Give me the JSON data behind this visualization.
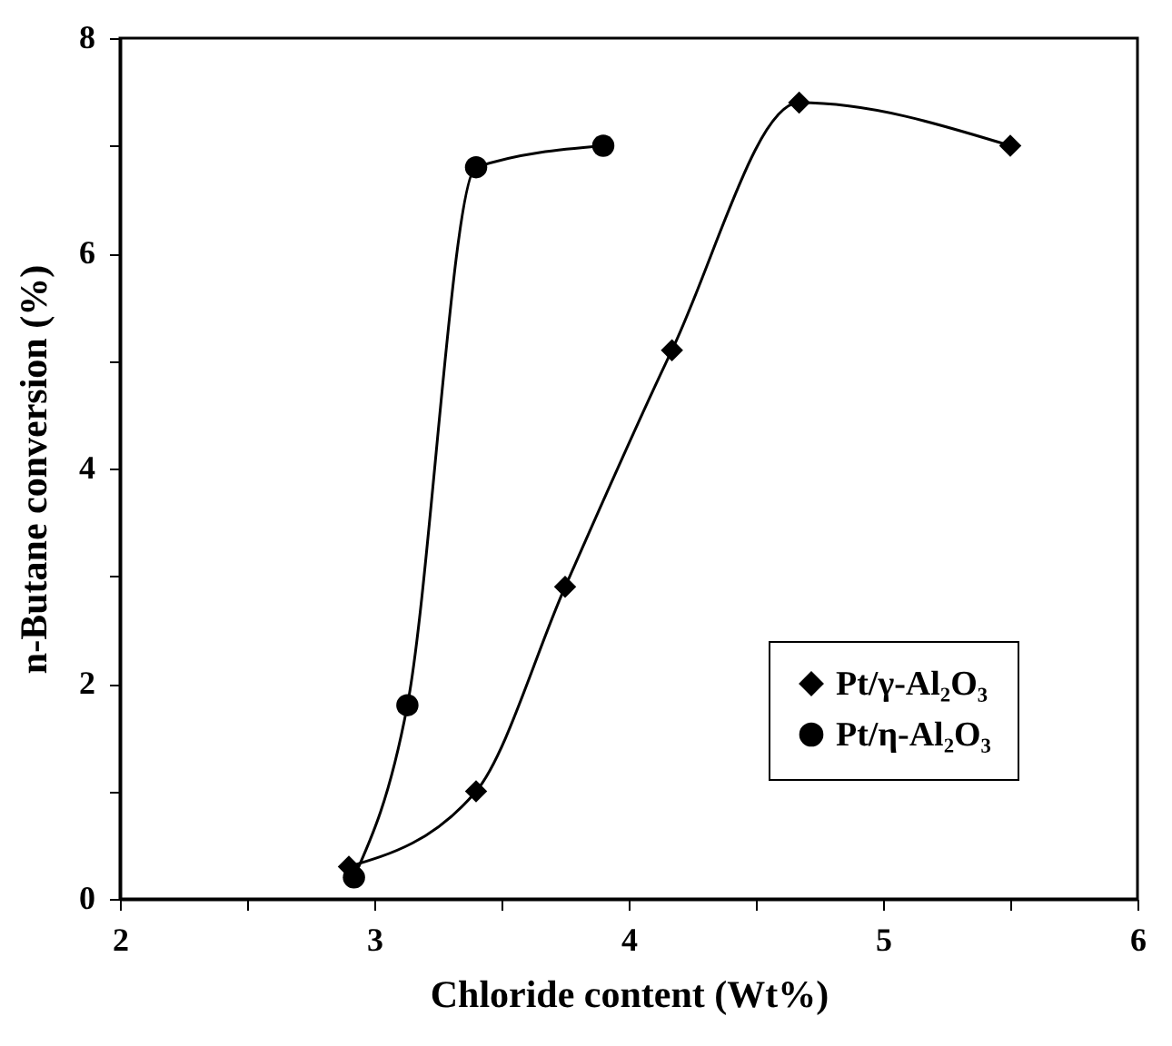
{
  "chart_data": {
    "type": "line",
    "xlabel": "Chloride content (Wt%)",
    "ylabel": "n-Butane conversion (%)",
    "xlim": [
      2,
      6
    ],
    "ylim": [
      0,
      8
    ],
    "xticks": [
      2,
      {
        "value": 2.5,
        "label": null
      },
      3,
      {
        "value": 3.5,
        "label": null
      },
      4,
      {
        "value": 4.5,
        "label": null
      },
      5,
      {
        "value": 5.5,
        "label": null
      },
      6
    ],
    "yticks": [
      0,
      {
        "value": 1,
        "label": null
      },
      2,
      {
        "value": 3,
        "label": null
      },
      4,
      {
        "value": 5,
        "label": null
      },
      6,
      {
        "value": 7,
        "label": null
      },
      8
    ],
    "legend": "bottom right",
    "grid": false,
    "line_style": "solid",
    "series": [
      {
        "name": "Pt/γ-Al₂O₃",
        "color": "#000000",
        "marker": "diamond",
        "x": [
          2.9,
          3.4,
          3.75,
          4.17,
          4.67,
          5.5
        ],
        "values": [
          0.3,
          1.0,
          2.9,
          5.1,
          7.4,
          7.0
        ]
      },
      {
        "name": "Pt/η-Al₂O₃",
        "color": "#000000",
        "marker": "circle",
        "x": [
          2.92,
          3.13,
          3.4,
          3.9
        ],
        "values": [
          0.2,
          1.8,
          6.8,
          7.0
        ]
      }
    ]
  }
}
